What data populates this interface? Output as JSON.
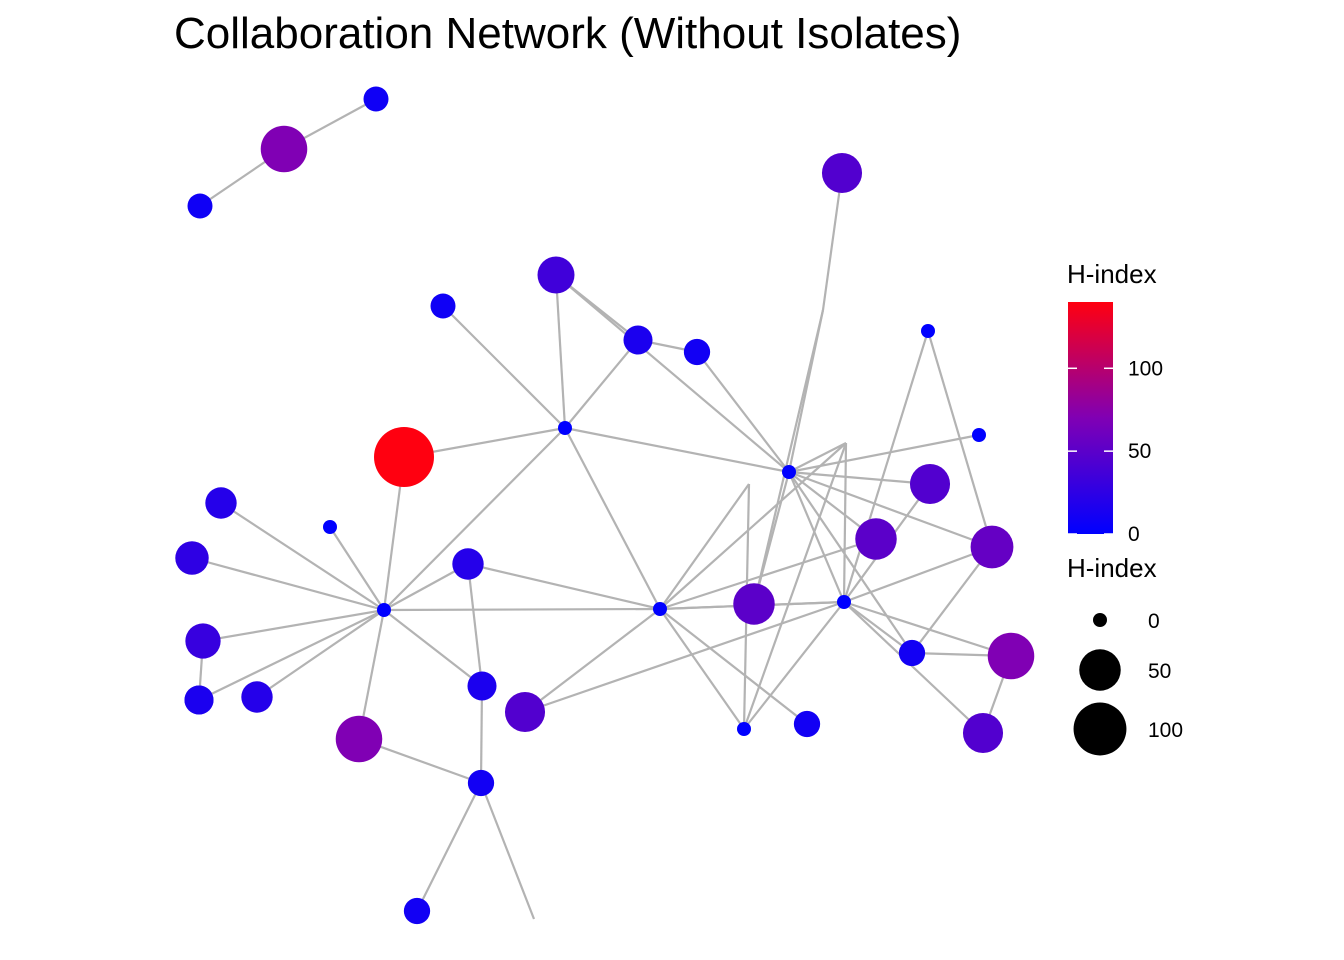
{
  "title": "Collaboration Network (Without Isolates)",
  "colors": {
    "edge": "#b3b3b3",
    "low": "#0000ff",
    "high": "#ff0000"
  },
  "legend": {
    "color": {
      "title": "H-index",
      "min": 0,
      "max": 140,
      "breaks": [
        {
          "value": 0,
          "label": "0"
        },
        {
          "value": 50,
          "label": "50"
        },
        {
          "value": 100,
          "label": "100"
        }
      ]
    },
    "size": {
      "title": "H-index",
      "breaks": [
        {
          "value": 0,
          "label": "0"
        },
        {
          "value": 50,
          "label": "50"
        },
        {
          "value": 100,
          "label": "100"
        }
      ]
    }
  },
  "network": {
    "nodes": [
      {
        "id": "n1",
        "h": 8
      },
      {
        "id": "n2",
        "h": 70
      },
      {
        "id": "n3",
        "h": 8
      },
      {
        "id": "n4",
        "h": 45
      },
      {
        "id": "n5",
        "h": 8
      },
      {
        "id": "n6",
        "h": 35
      },
      {
        "id": "n7",
        "h": 15
      },
      {
        "id": "n8",
        "h": 10
      },
      {
        "id": "n9",
        "h": 0
      },
      {
        "id": "n10",
        "h": 140
      },
      {
        "id": "n11",
        "h": 20
      },
      {
        "id": "n12",
        "h": 0
      },
      {
        "id": "n13",
        "h": 45
      },
      {
        "id": "n14",
        "h": 25
      },
      {
        "id": "n15",
        "h": 0
      },
      {
        "id": "n16",
        "h": 50
      },
      {
        "id": "n17",
        "h": 30
      },
      {
        "id": "n18",
        "h": 0
      },
      {
        "id": "n19",
        "h": 15
      },
      {
        "id": "n20",
        "h": 0
      },
      {
        "id": "n21",
        "h": 0
      },
      {
        "id": "n22",
        "h": 20
      },
      {
        "id": "n23",
        "h": 20
      },
      {
        "id": "n24",
        "h": 15
      },
      {
        "id": "n25",
        "h": 10
      },
      {
        "id": "n26",
        "h": 70
      },
      {
        "id": "n27",
        "h": 15
      },
      {
        "id": "n28",
        "h": 45
      },
      {
        "id": "n29",
        "h": 55
      },
      {
        "id": "n30",
        "h": 10
      },
      {
        "id": "n31",
        "h": 50
      },
      {
        "id": "n32",
        "h": 10
      },
      {
        "id": "n33",
        "h": 0
      },
      {
        "id": "n34",
        "h": 0
      },
      {
        "id": "n35",
        "h": 70
      },
      {
        "id": "n36",
        "h": 45
      },
      {
        "id": "n37",
        "h": 10
      },
      {
        "id": "n38",
        "h": 0
      },
      {
        "id": "j1",
        "h": null
      },
      {
        "id": "j2",
        "h": null
      },
      {
        "id": "j3",
        "h": null
      },
      {
        "id": "j4",
        "h": null
      },
      {
        "id": "j5",
        "h": null
      }
    ],
    "edges": [
      [
        "n1",
        "n2"
      ],
      [
        "n2",
        "n3"
      ],
      [
        "n4",
        "j1"
      ],
      [
        "j1",
        "n15"
      ],
      [
        "j1",
        "n31"
      ],
      [
        "n6",
        "n7"
      ],
      [
        "n6",
        "n9"
      ],
      [
        "n7",
        "n9"
      ],
      [
        "n6",
        "n15"
      ],
      [
        "n7",
        "n8"
      ],
      [
        "n8",
        "n15"
      ],
      [
        "n5",
        "n9"
      ],
      [
        "n10",
        "n9"
      ],
      [
        "n10",
        "n18"
      ],
      [
        "n9",
        "n15"
      ],
      [
        "n9",
        "n18"
      ],
      [
        "n9",
        "n20"
      ],
      [
        "n11",
        "n18"
      ],
      [
        "n14",
        "n18"
      ],
      [
        "n17",
        "n18"
      ],
      [
        "n17",
        "n19"
      ],
      [
        "n19",
        "n18"
      ],
      [
        "n19",
        "n24"
      ],
      [
        "j3",
        "n18"
      ],
      [
        "j3",
        "n21"
      ],
      [
        "n18",
        "n20"
      ],
      [
        "n18",
        "n22"
      ],
      [
        "n18",
        "n23"
      ],
      [
        "n18",
        "n26"
      ],
      [
        "n18",
        "n27"
      ],
      [
        "n16",
        "n20"
      ],
      [
        "n27",
        "n22"
      ],
      [
        "n27",
        "n25"
      ],
      [
        "n25",
        "n26"
      ],
      [
        "n25",
        "n37"
      ],
      [
        "n25",
        "j5"
      ],
      [
        "n22",
        "n20"
      ],
      [
        "n20",
        "n28"
      ],
      [
        "n20",
        "n32"
      ],
      [
        "n20",
        "n33"
      ],
      [
        "n20",
        "n34"
      ],
      [
        "n20",
        "j2"
      ],
      [
        "n20",
        "j4"
      ],
      [
        "j4",
        "n15"
      ],
      [
        "j4",
        "n34"
      ],
      [
        "j4",
        "n33"
      ],
      [
        "j2",
        "n33"
      ],
      [
        "n15",
        "n31"
      ],
      [
        "n15",
        "n34"
      ],
      [
        "n15",
        "n29"
      ],
      [
        "n15",
        "n30"
      ],
      [
        "n15",
        "n16"
      ],
      [
        "n15",
        "n12"
      ],
      [
        "n34",
        "n29"
      ],
      [
        "n34",
        "n30"
      ],
      [
        "n34",
        "n33"
      ],
      [
        "n34",
        "n35"
      ],
      [
        "n34",
        "n36"
      ],
      [
        "n34",
        "n38"
      ],
      [
        "n34",
        "n28"
      ],
      [
        "n34",
        "n13"
      ],
      [
        "n34",
        "n20"
      ],
      [
        "n35",
        "n36"
      ],
      [
        "n35",
        "n30"
      ],
      [
        "n30",
        "n29"
      ],
      [
        "n29",
        "n38"
      ],
      [
        "n15",
        "n13"
      ]
    ]
  }
}
